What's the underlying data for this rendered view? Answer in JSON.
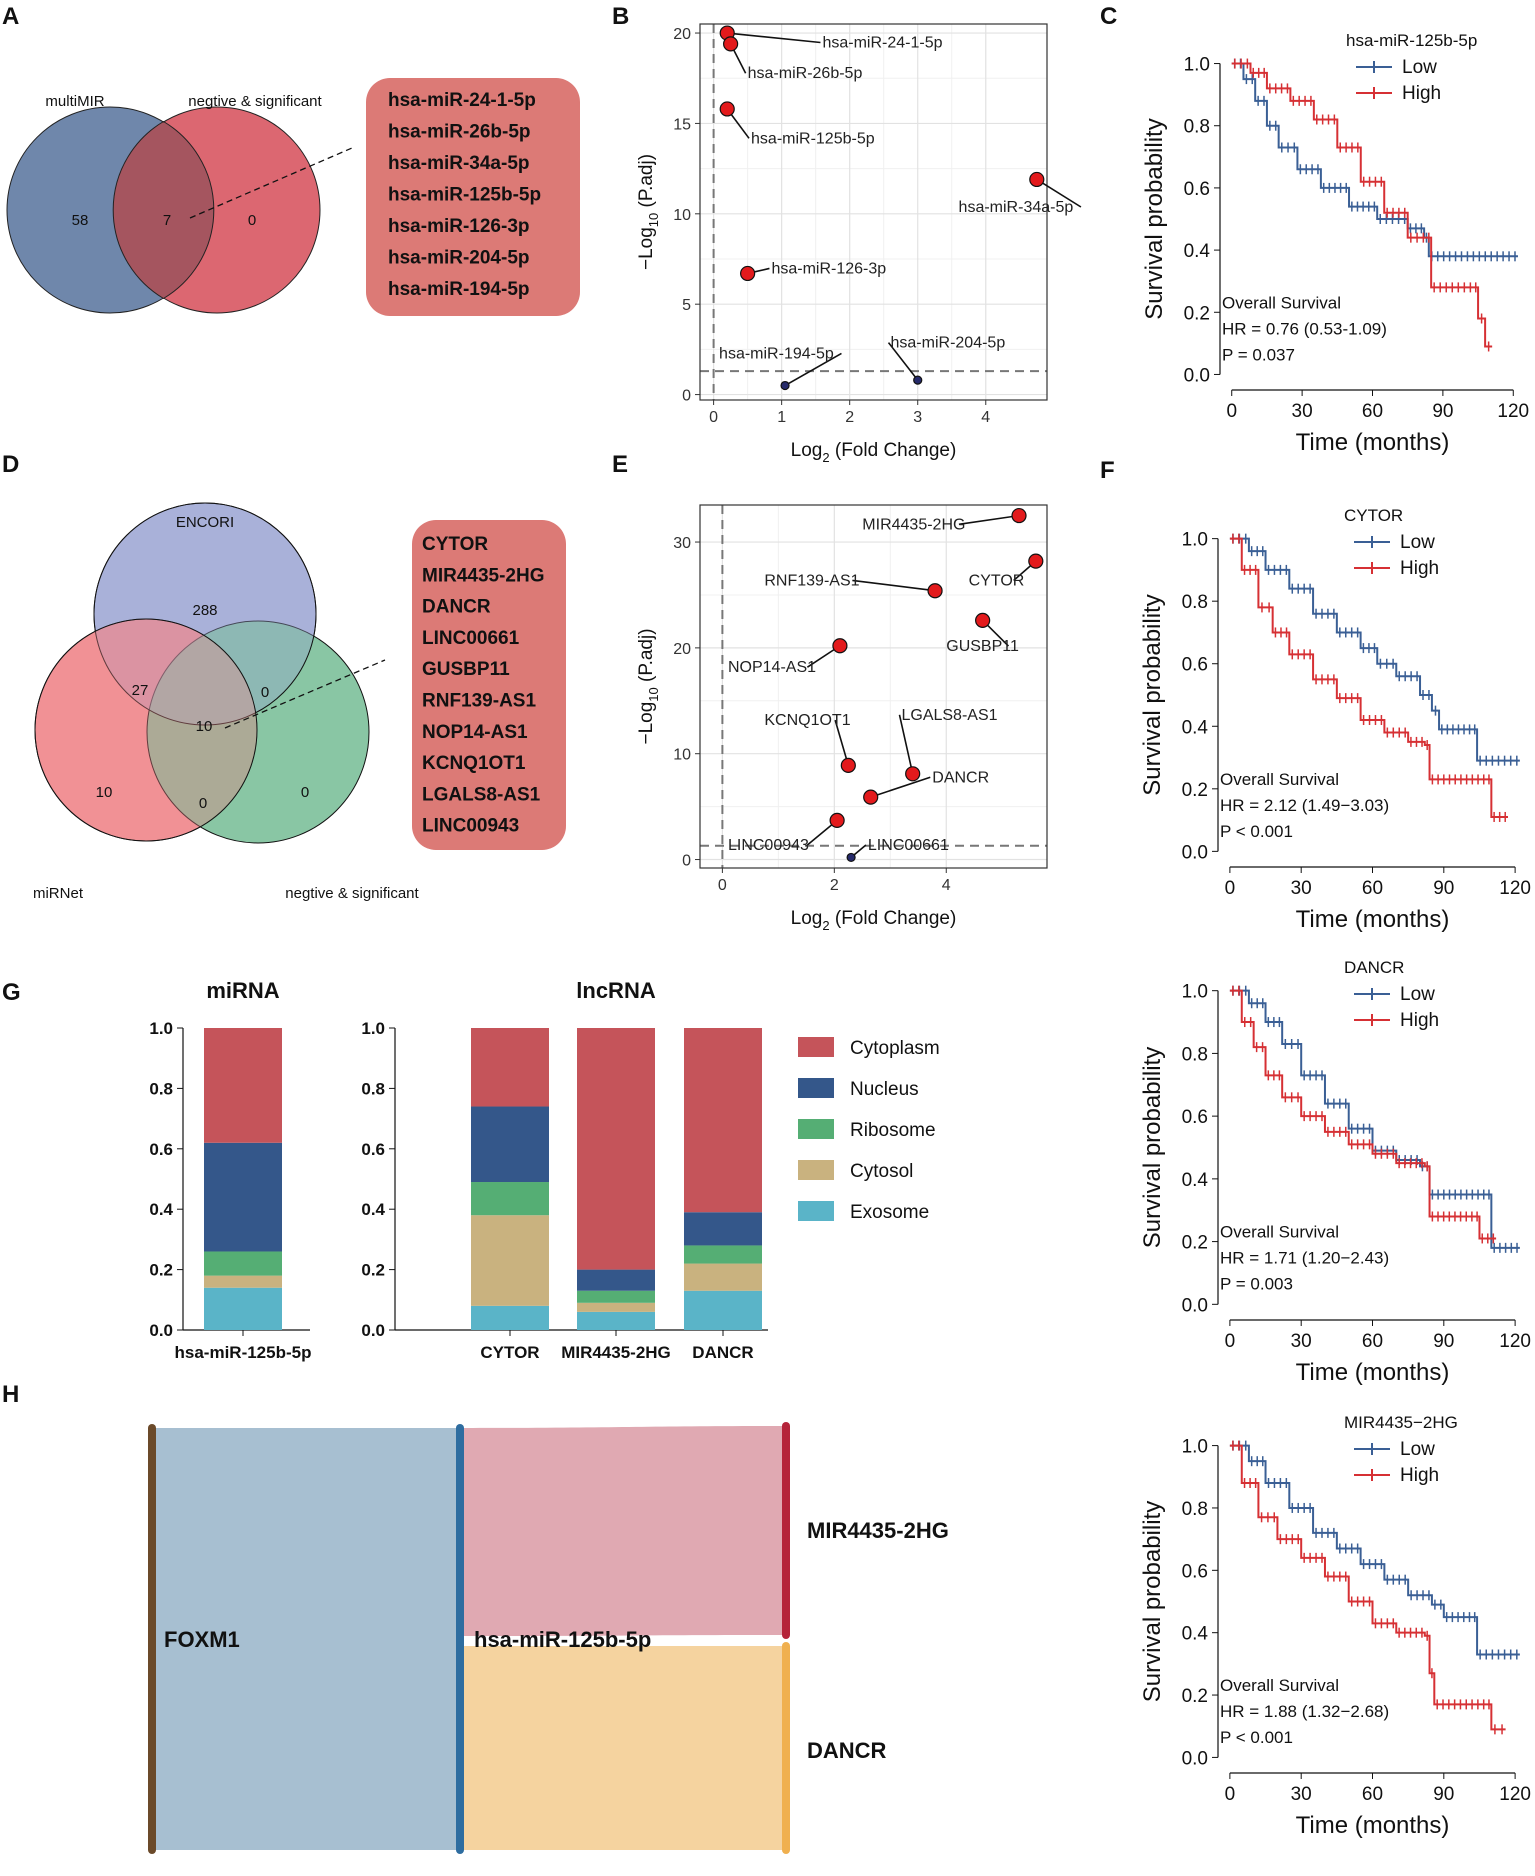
{
  "panel_labels": {
    "A": "A",
    "B": "B",
    "C": "C",
    "D": "D",
    "E": "E",
    "F": "F",
    "G": "G",
    "H": "H"
  },
  "colors": {
    "red_fill": "#dc6771",
    "blue_fill": "#6f87ab",
    "overlap_fill": "#a5555f",
    "box_fill": "#dc7a76",
    "encori": "#a3acd6",
    "mirnet": "#f08a8e",
    "negsig": "#7cc09a",
    "km_low": "#3a5f95",
    "km_high": "#d63034",
    "cyto": "#c5545a",
    "nucleus": "#34578a",
    "ribosome": "#55ae74",
    "cytosol": "#c9b27f",
    "exosome": "#5ab4c8",
    "volcano_sig": "#e31a1c",
    "volcano_ns": "#262a6a",
    "sankey_foxm1": "#a7bfd1",
    "sankey_mir": "#e0a9b2",
    "sankey_dancr": "#f5d39f",
    "bar_foxm1": "#6b4a2a",
    "bar_mir125": "#2e6da0",
    "bar_mir4435": "#b5243a",
    "bar_dancr": "#f0b04f"
  },
  "venn_A": {
    "set_left": "multiMIR",
    "set_right": "negtive & significant",
    "left_only": "58",
    "overlap": "7",
    "right_only": "0",
    "genes": [
      "hsa-miR-24-1-5p",
      "hsa-miR-26b-5p",
      "hsa-miR-34a-5p",
      "hsa-miR-125b-5p",
      "hsa-miR-126-3p",
      "hsa-miR-204-5p",
      "hsa-miR-194-5p"
    ]
  },
  "venn_D": {
    "set_top": "ENCORI",
    "set_left": "miRNet",
    "set_right": "negtive & significant",
    "top_only": "288",
    "top_left": "27",
    "top_right": "0",
    "center": "10",
    "left_only": "10",
    "left_right": "0",
    "right_only": "0",
    "genes": [
      "CYTOR",
      "MIR4435-2HG",
      "DANCR",
      "LINC00661",
      "GUSBP11",
      "RNF139-AS1",
      "NOP14-AS1",
      "KCNQ1OT1",
      "LGALS8-AS1",
      "LINC00943"
    ]
  },
  "chart_data": [
    {
      "panel": "B",
      "type": "scatter",
      "xlabel": "Log2 (Fold Change)",
      "ylabel": "-Log10 (P.adj)",
      "xlim": [
        -0.2,
        4.9
      ],
      "ylim": [
        -0.3,
        20.5
      ],
      "xticks": [
        0,
        1,
        2,
        3,
        4
      ],
      "yticks": [
        0,
        5,
        10,
        15,
        20
      ],
      "threshold_y": 1.3,
      "threshold_x": 0,
      "points": [
        {
          "label": "hsa-miR-24-1-5p",
          "x": 0.2,
          "y": 20.0,
          "sig": true,
          "lx": 1.6,
          "ly": 19.2
        },
        {
          "label": "hsa-miR-26b-5p",
          "x": 0.25,
          "y": 19.4,
          "sig": true,
          "lx": 0.5,
          "ly": 17.5
        },
        {
          "label": "hsa-miR-125b-5p",
          "x": 0.2,
          "y": 15.8,
          "sig": true,
          "lx": 0.55,
          "ly": 13.9
        },
        {
          "label": "hsa-miR-34a-5p",
          "x": 4.75,
          "y": 11.9,
          "sig": true,
          "lx": 3.6,
          "ly": 10.1
        },
        {
          "label": "hsa-miR-126-3p",
          "x": 0.5,
          "y": 6.7,
          "sig": true,
          "lx": 0.85,
          "ly": 6.7
        },
        {
          "label": "hsa-miR-194-5p",
          "x": 1.05,
          "y": 0.5,
          "sig": false,
          "lx": 0.08,
          "ly": 2.0
        },
        {
          "label": "hsa-miR-204-5p",
          "x": 3.0,
          "y": 0.8,
          "sig": false,
          "lx": 2.6,
          "ly": 2.6
        }
      ]
    },
    {
      "panel": "E",
      "type": "scatter",
      "xlabel": "Log2 (Fold Change)",
      "ylabel": "-Log10 (P.adj)",
      "xlim": [
        -0.4,
        5.8
      ],
      "ylim": [
        -0.8,
        33.5
      ],
      "xticks": [
        0,
        2,
        4
      ],
      "yticks": [
        0,
        10,
        20,
        30
      ],
      "threshold_y": 1.3,
      "threshold_x": 0,
      "points": [
        {
          "label": "MIR4435-2HG",
          "x": 5.3,
          "y": 32.5,
          "sig": true,
          "lx": 2.5,
          "ly": 31.2
        },
        {
          "label": "CYTOR",
          "x": 5.6,
          "y": 28.2,
          "sig": true,
          "lx": 4.4,
          "ly": 25.9
        },
        {
          "label": "RNF139-AS1",
          "x": 3.8,
          "y": 25.4,
          "sig": true,
          "lx": 0.75,
          "ly": 25.9
        },
        {
          "label": "GUSBP11",
          "x": 4.65,
          "y": 22.6,
          "sig": true,
          "lx": 4.0,
          "ly": 19.7
        },
        {
          "label": "NOP14-AS1",
          "x": 2.1,
          "y": 20.2,
          "sig": true,
          "lx": 0.1,
          "ly": 17.7
        },
        {
          "label": "KCNQ1OT1",
          "x": 2.25,
          "y": 8.9,
          "sig": true,
          "lx": 0.75,
          "ly": 12.7
        },
        {
          "label": "LGALS8-AS1",
          "x": 3.4,
          "y": 8.1,
          "sig": true,
          "lx": 3.2,
          "ly": 13.2
        },
        {
          "label": "DANCR",
          "x": 2.65,
          "y": 5.9,
          "sig": true,
          "lx": 3.75,
          "ly": 7.3
        },
        {
          "label": "LINC00943",
          "x": 2.05,
          "y": 3.7,
          "sig": true,
          "lx": 0.1,
          "ly": 0.9
        },
        {
          "label": "LINC00661",
          "x": 2.3,
          "y": 0.2,
          "sig": false,
          "lx": 2.6,
          "ly": 0.9
        }
      ]
    },
    {
      "panel": "C",
      "type": "line",
      "title": "hsa-miR-125b-5p",
      "xlabel": "Time (months)",
      "ylabel": "Survival probability",
      "xlim": [
        -5,
        125
      ],
      "ylim": [
        -0.05,
        1.05
      ],
      "xticks": [
        0,
        30,
        60,
        90,
        120
      ],
      "yticks": [
        0.0,
        0.2,
        0.4,
        0.6,
        0.8,
        1.0
      ],
      "legend": [
        "Low",
        "High"
      ],
      "series": [
        {
          "name": "Low",
          "points": [
            [
              0,
              1.0
            ],
            [
              5,
              0.95
            ],
            [
              10,
              0.88
            ],
            [
              15,
              0.8
            ],
            [
              20,
              0.73
            ],
            [
              28,
              0.66
            ],
            [
              38,
              0.6
            ],
            [
              50,
              0.54
            ],
            [
              62,
              0.5
            ],
            [
              75,
              0.47
            ],
            [
              82,
              0.44
            ],
            [
              84,
              0.38
            ],
            [
              122,
              0.38
            ]
          ]
        },
        {
          "name": "High",
          "points": [
            [
              0,
              1.0
            ],
            [
              8,
              0.97
            ],
            [
              15,
              0.92
            ],
            [
              25,
              0.88
            ],
            [
              35,
              0.82
            ],
            [
              45,
              0.73
            ],
            [
              55,
              0.62
            ],
            [
              65,
              0.52
            ],
            [
              75,
              0.44
            ],
            [
              83,
              0.44
            ],
            [
              85,
              0.28
            ],
            [
              103,
              0.28
            ],
            [
              105,
              0.18
            ],
            [
              108,
              0.09
            ],
            [
              111,
              0.09
            ]
          ]
        }
      ],
      "annot": [
        "Overall Survival",
        "HR = 0.76 (0.53-1.09)",
        "P = 0.037"
      ]
    },
    {
      "panel": "F1",
      "type": "line",
      "title": "CYTOR",
      "xlabel": "Time (months)",
      "ylabel": "Survival probability",
      "xlim": [
        -5,
        125
      ],
      "ylim": [
        -0.05,
        1.05
      ],
      "xticks": [
        0,
        30,
        60,
        90,
        120
      ],
      "yticks": [
        0.0,
        0.2,
        0.4,
        0.6,
        0.8,
        1.0
      ],
      "legend": [
        "Low",
        "High"
      ],
      "series": [
        {
          "name": "Low",
          "points": [
            [
              0,
              1.0
            ],
            [
              8,
              0.96
            ],
            [
              15,
              0.9
            ],
            [
              25,
              0.84
            ],
            [
              35,
              0.76
            ],
            [
              45,
              0.7
            ],
            [
              55,
              0.65
            ],
            [
              62,
              0.6
            ],
            [
              70,
              0.56
            ],
            [
              80,
              0.5
            ],
            [
              85,
              0.45
            ],
            [
              88,
              0.39
            ],
            [
              102,
              0.39
            ],
            [
              104,
              0.29
            ],
            [
              122,
              0.29
            ]
          ]
        },
        {
          "name": "High",
          "points": [
            [
              0,
              1.0
            ],
            [
              5,
              0.9
            ],
            [
              12,
              0.78
            ],
            [
              18,
              0.7
            ],
            [
              25,
              0.63
            ],
            [
              35,
              0.55
            ],
            [
              45,
              0.49
            ],
            [
              55,
              0.42
            ],
            [
              65,
              0.38
            ],
            [
              75,
              0.35
            ],
            [
              82,
              0.34
            ],
            [
              84,
              0.23
            ],
            [
              108,
              0.23
            ],
            [
              110,
              0.11
            ],
            [
              117,
              0.11
            ]
          ]
        }
      ],
      "annot": [
        "Overall Survival",
        "HR = 2.12 (1.49−3.03)",
        "P < 0.001"
      ]
    },
    {
      "panel": "F2",
      "type": "line",
      "title": "DANCR",
      "xlabel": "Time (months)",
      "ylabel": "Survival probability",
      "xlim": [
        -5,
        125
      ],
      "ylim": [
        -0.05,
        1.05
      ],
      "xticks": [
        0,
        30,
        60,
        90,
        120
      ],
      "yticks": [
        0.0,
        0.2,
        0.4,
        0.6,
        0.8,
        1.0
      ],
      "legend": [
        "Low",
        "High"
      ],
      "series": [
        {
          "name": "Low",
          "points": [
            [
              0,
              1.0
            ],
            [
              8,
              0.96
            ],
            [
              15,
              0.9
            ],
            [
              22,
              0.83
            ],
            [
              30,
              0.73
            ],
            [
              40,
              0.64
            ],
            [
              50,
              0.56
            ],
            [
              60,
              0.49
            ],
            [
              70,
              0.46
            ],
            [
              80,
              0.44
            ],
            [
              84,
              0.35
            ],
            [
              108,
              0.35
            ],
            [
              110,
              0.18
            ],
            [
              122,
              0.18
            ]
          ]
        },
        {
          "name": "High",
          "points": [
            [
              0,
              1.0
            ],
            [
              5,
              0.9
            ],
            [
              10,
              0.82
            ],
            [
              15,
              0.73
            ],
            [
              22,
              0.66
            ],
            [
              30,
              0.6
            ],
            [
              40,
              0.55
            ],
            [
              50,
              0.51
            ],
            [
              60,
              0.48
            ],
            [
              70,
              0.45
            ],
            [
              82,
              0.44
            ],
            [
              84,
              0.28
            ],
            [
              103,
              0.28
            ],
            [
              105,
              0.21
            ],
            [
              112,
              0.21
            ]
          ]
        }
      ],
      "annot": [
        "Overall Survival",
        "HR = 1.71 (1.20−2.43)",
        "P = 0.003"
      ]
    },
    {
      "panel": "F3",
      "type": "line",
      "title": "MIR4435−2HG",
      "xlabel": "Time (months)",
      "ylabel": "Survival probability",
      "xlim": [
        -5,
        125
      ],
      "ylim": [
        -0.05,
        1.05
      ],
      "xticks": [
        0,
        30,
        60,
        90,
        120
      ],
      "yticks": [
        0.0,
        0.2,
        0.4,
        0.6,
        0.8,
        1.0
      ],
      "legend": [
        "Low",
        "High"
      ],
      "series": [
        {
          "name": "Low",
          "points": [
            [
              0,
              1.0
            ],
            [
              8,
              0.95
            ],
            [
              15,
              0.88
            ],
            [
              25,
              0.8
            ],
            [
              35,
              0.72
            ],
            [
              45,
              0.67
            ],
            [
              55,
              0.62
            ],
            [
              65,
              0.57
            ],
            [
              75,
              0.52
            ],
            [
              85,
              0.49
            ],
            [
              90,
              0.45
            ],
            [
              102,
              0.45
            ],
            [
              104,
              0.33
            ],
            [
              122,
              0.33
            ]
          ]
        },
        {
          "name": "High",
          "points": [
            [
              0,
              1.0
            ],
            [
              5,
              0.88
            ],
            [
              12,
              0.77
            ],
            [
              20,
              0.7
            ],
            [
              30,
              0.64
            ],
            [
              40,
              0.58
            ],
            [
              50,
              0.5
            ],
            [
              60,
              0.43
            ],
            [
              70,
              0.4
            ],
            [
              82,
              0.39
            ],
            [
              84,
              0.27
            ],
            [
              86,
              0.17
            ],
            [
              108,
              0.17
            ],
            [
              110,
              0.09
            ],
            [
              116,
              0.09
            ]
          ]
        }
      ],
      "annot": [
        "Overall Survival",
        "HR = 1.88 (1.32−2.68)",
        "P < 0.001"
      ]
    },
    {
      "panel": "G",
      "type": "bar",
      "title_mirna": "miRNA",
      "title_lncrna": "lncRNA",
      "ylim": [
        0,
        1
      ],
      "yticks": [
        "0.0",
        "0.2",
        "0.4",
        "0.6",
        "0.8",
        "1.0"
      ],
      "categories": [
        "hsa-miR-125b-5p",
        "CYTOR",
        "MIR4435-2HG",
        "DANCR"
      ],
      "legend": [
        "Cytoplasm",
        "Nucleus",
        "Ribosome",
        "Cytosol",
        "Exosome"
      ],
      "series": [
        {
          "name": "Exosome",
          "values": [
            0.14,
            0.08,
            0.06,
            0.13
          ]
        },
        {
          "name": "Cytosol",
          "values": [
            0.04,
            0.3,
            0.03,
            0.09
          ]
        },
        {
          "name": "Ribosome",
          "values": [
            0.08,
            0.11,
            0.04,
            0.06
          ]
        },
        {
          "name": "Nucleus",
          "values": [
            0.36,
            0.25,
            0.07,
            0.11
          ]
        },
        {
          "name": "Cytoplasm",
          "values": [
            0.38,
            0.26,
            0.8,
            0.61
          ]
        }
      ]
    },
    {
      "panel": "H",
      "type": "sankey",
      "nodes": [
        "FOXM1",
        "hsa-miR-125b-5p",
        "MIR4435-2HG",
        "DANCR"
      ],
      "links": [
        {
          "source": "FOXM1",
          "target": "hsa-miR-125b-5p",
          "value": 1.0
        },
        {
          "source": "hsa-miR-125b-5p",
          "target": "MIR4435-2HG",
          "value": 0.5
        },
        {
          "source": "hsa-miR-125b-5p",
          "target": "DANCR",
          "value": 0.5
        }
      ]
    }
  ]
}
